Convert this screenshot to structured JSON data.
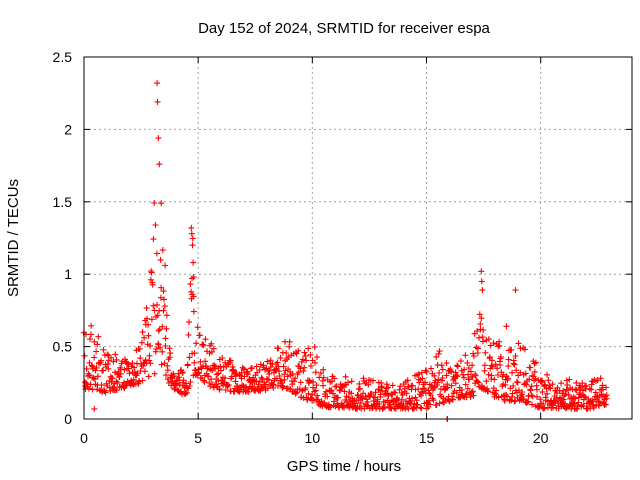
{
  "chart_data": {
    "type": "scatter",
    "title": "Day 152 of 2024, SRMTID for receiver espa",
    "xlabel": "GPS time / hours",
    "ylabel": "SRMTID / TECUs",
    "xlim": [
      0,
      24
    ],
    "ylim": [
      0,
      2.5
    ],
    "x_ticks": [
      0,
      5,
      10,
      15,
      20
    ],
    "y_ticks": [
      0,
      0.5,
      1,
      1.5,
      2,
      2.5
    ],
    "x_tick_labels": [
      "0",
      "5",
      "10",
      "15",
      "20"
    ],
    "y_tick_labels": [
      "0",
      "0.5",
      "1",
      "1.5",
      "2",
      "2.5"
    ],
    "grid": true,
    "marker": "+",
    "series": [
      {
        "name": "SRMTID",
        "color": "#ff0000",
        "envelope": {
          "x": [
            0.0,
            0.5,
            1.0,
            1.5,
            2.0,
            2.5,
            2.9,
            3.1,
            3.3,
            3.5,
            3.7,
            4.0,
            4.5,
            4.75,
            5.0,
            5.5,
            6.0,
            7.0,
            8.0,
            8.5,
            9.0,
            9.5,
            10.0,
            10.5,
            11.0,
            12.0,
            13.0,
            14.0,
            15.0,
            15.5,
            16.0,
            16.5,
            17.0,
            17.3,
            17.6,
            18.0,
            18.5,
            19.0,
            19.5,
            20.0,
            20.5,
            21.0,
            21.5,
            22.0,
            22.5,
            22.9
          ],
          "low": [
            0.2,
            0.2,
            0.18,
            0.2,
            0.22,
            0.25,
            0.3,
            0.3,
            0.35,
            0.3,
            0.25,
            0.2,
            0.15,
            0.3,
            0.3,
            0.22,
            0.2,
            0.18,
            0.2,
            0.22,
            0.2,
            0.15,
            0.12,
            0.08,
            0.08,
            0.07,
            0.07,
            0.07,
            0.07,
            0.1,
            0.12,
            0.15,
            0.15,
            0.2,
            0.2,
            0.15,
            0.12,
            0.12,
            0.1,
            0.07,
            0.07,
            0.07,
            0.07,
            0.07,
            0.08,
            0.1
          ],
          "high": [
            0.6,
            0.7,
            0.45,
            0.45,
            0.4,
            0.55,
            0.95,
            1.6,
            1.75,
            1.05,
            0.6,
            0.35,
            0.35,
            1.3,
            0.65,
            0.55,
            0.45,
            0.35,
            0.4,
            0.55,
            0.55,
            0.45,
            0.55,
            0.35,
            0.3,
            0.3,
            0.25,
            0.25,
            0.35,
            0.5,
            0.35,
            0.4,
            0.5,
            0.75,
            0.6,
            0.55,
            0.55,
            0.55,
            0.45,
            0.35,
            0.3,
            0.35,
            0.25,
            0.25,
            0.3,
            0.25
          ]
        },
        "outliers": [
          {
            "x": 3.2,
            "y": 2.32
          },
          {
            "x": 3.22,
            "y": 2.19
          },
          {
            "x": 3.26,
            "y": 1.94
          },
          {
            "x": 3.3,
            "y": 1.76
          },
          {
            "x": 3.38,
            "y": 1.49
          },
          {
            "x": 3.55,
            "y": 1.06
          },
          {
            "x": 4.7,
            "y": 1.32
          },
          {
            "x": 4.72,
            "y": 1.28
          },
          {
            "x": 4.75,
            "y": 1.2
          },
          {
            "x": 4.78,
            "y": 1.08
          },
          {
            "x": 4.8,
            "y": 0.98
          },
          {
            "x": 4.74,
            "y": 0.86
          },
          {
            "x": 17.4,
            "y": 1.02
          },
          {
            "x": 17.42,
            "y": 0.95
          },
          {
            "x": 17.45,
            "y": 0.89
          },
          {
            "x": 18.9,
            "y": 0.89
          },
          {
            "x": 18.5,
            "y": 0.64
          },
          {
            "x": 0.45,
            "y": 0.07
          },
          {
            "x": 15.9,
            "y": 0.0
          },
          {
            "x": 15.92,
            "y": 0.0
          }
        ]
      }
    ]
  }
}
